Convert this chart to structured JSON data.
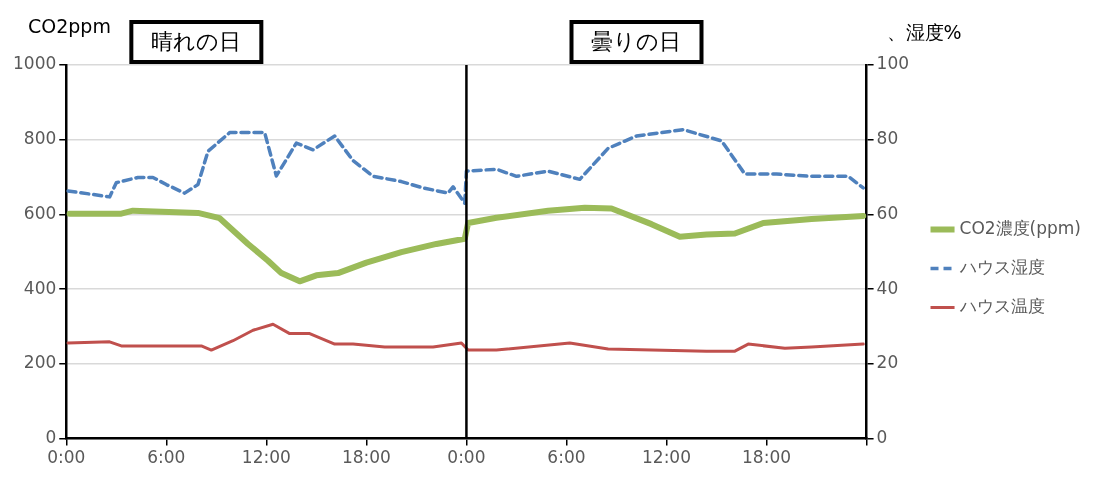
{
  "chart_data": {
    "type": "line",
    "ylabel": "CO2ppm",
    "y2label": "、湿度%",
    "annotations": [
      "晴れの日",
      "曇りの日"
    ],
    "xlim": [
      "2000-01-01T00:00",
      "2000-01-03T00:00"
    ],
    "xticks": [
      {
        "value": "2000-01-01T00:00",
        "label": "0:00"
      },
      {
        "value": "2000-01-01T06:00",
        "label": "6:00"
      },
      {
        "value": "2000-01-01T12:00",
        "label": "12:00"
      },
      {
        "value": "2000-01-01T18:00",
        "label": "18:00"
      },
      {
        "value": "2000-01-02T00:00",
        "label": "0:00"
      },
      {
        "value": "2000-01-02T06:00",
        "label": "6:00"
      },
      {
        "value": "2000-01-02T12:00",
        "label": "12:00"
      },
      {
        "value": "2000-01-02T18:00",
        "label": "18:00"
      },
      {
        "value": "2000-01-03T00:00",
        "label": null
      }
    ],
    "ylim": [
      0,
      1000
    ],
    "yticks": [
      0,
      200,
      400,
      600,
      800,
      1000
    ],
    "y2lim": [
      0,
      100
    ],
    "y2ticks": [
      0,
      20,
      40,
      60,
      80,
      100
    ],
    "grid": "y",
    "legend": "right",
    "marker": "none",
    "ref_lines": [
      {
        "axis": "x",
        "value": "2000-01-02T00:00",
        "color": "#000000"
      }
    ],
    "series": [
      {
        "name": "CO2濃度(ppm)",
        "color": "#9bbb59",
        "line_style": "solid",
        "x": [
          "2000-01-01T00:12",
          "2000-01-01T03:18",
          "2000-01-01T04:00",
          "2000-01-01T07:54",
          "2000-01-01T09:12",
          "2000-01-01T10:54",
          "2000-01-01T12:06",
          "2000-01-01T12:54",
          "2000-01-01T14:00",
          "2000-01-01T15:00",
          "2000-01-01T16:18",
          "2000-01-01T18:00",
          "2000-01-01T20:06",
          "2000-01-01T22:12",
          "2000-01-01T23:54",
          "2000-01-02T00:06",
          "2000-01-02T01:48",
          "2000-01-02T04:54",
          "2000-01-02T07:06",
          "2000-01-02T08:42",
          "2000-01-02T11:06",
          "2000-01-02T12:48",
          "2000-01-02T14:24",
          "2000-01-02T16:06",
          "2000-01-02T17:48",
          "2000-01-02T20:42",
          "2000-01-02T23:48"
        ],
        "values": [
          602,
          602,
          610,
          604,
          590,
          521,
          476,
          443,
          421,
          437,
          443,
          471,
          499,
          521,
          535,
          577,
          591,
          610,
          618,
          616,
          574,
          540,
          546,
          549,
          577,
          588,
          596
        ]
      },
      {
        "name": "ハウス湿度",
        "color": "#4f81bd",
        "axis": "y2",
        "line_style": "dashed",
        "x": [
          "2000-01-01T00:06",
          "2000-01-01T02:36",
          "2000-01-01T03:00",
          "2000-01-01T04:18",
          "2000-01-01T05:12",
          "2000-01-01T06:00",
          "2000-01-01T07:06",
          "2000-01-01T07:54",
          "2000-01-01T08:30",
          "2000-01-01T09:48",
          "2000-01-01T11:54",
          "2000-01-01T12:36",
          "2000-01-01T13:48",
          "2000-01-01T14:48",
          "2000-01-01T16:06",
          "2000-01-01T17:12",
          "2000-01-01T18:24",
          "2000-01-01T20:06",
          "2000-01-01T21:24",
          "2000-01-01T22:54",
          "2000-01-01T23:12",
          "2000-01-01T23:54",
          "2000-01-02T00:00",
          "2000-01-02T01:48",
          "2000-01-02T03:00",
          "2000-01-02T04:54",
          "2000-01-02T06:48",
          "2000-01-02T08:30",
          "2000-01-02T10:12",
          "2000-01-02T13:00",
          "2000-01-02T15:18",
          "2000-01-02T16:42",
          "2000-01-02T18:36",
          "2000-01-02T20:42",
          "2000-01-02T22:54",
          "2000-01-02T23:48"
        ],
        "values": [
          66.3,
          64.7,
          68.5,
          69.9,
          69.9,
          68,
          65.7,
          68,
          76.9,
          81.9,
          81.9,
          70.3,
          79.1,
          77.3,
          81,
          74.4,
          70.2,
          68.8,
          67.1,
          65.7,
          67.4,
          63,
          71.6,
          72.1,
          70.2,
          71.6,
          69.4,
          77.7,
          81,
          82.7,
          79.7,
          70.8,
          70.8,
          70.2,
          70.2,
          67.1
        ]
      },
      {
        "name": "ハウス温度",
        "color": "#c0504d",
        "axis": "y2",
        "line_style": "solid",
        "x": [
          "2000-01-01T00:06",
          "2000-01-01T02:36",
          "2000-01-01T03:18",
          "2000-01-01T08:06",
          "2000-01-01T08:42",
          "2000-01-01T10:00",
          "2000-01-01T11:12",
          "2000-01-01T12:24",
          "2000-01-01T13:24",
          "2000-01-01T14:36",
          "2000-01-01T16:06",
          "2000-01-01T17:12",
          "2000-01-01T19:06",
          "2000-01-01T22:00",
          "2000-01-01T23:42",
          "2000-01-02T00:06",
          "2000-01-02T01:48",
          "2000-01-02T06:12",
          "2000-01-02T08:30",
          "2000-01-02T14:24",
          "2000-01-02T16:06",
          "2000-01-02T16:54",
          "2000-01-02T19:06",
          "2000-01-02T20:42",
          "2000-01-02T23:48"
        ],
        "values": [
          25.6,
          25.9,
          24.8,
          24.8,
          23.7,
          26.2,
          29.0,
          30.6,
          28.1,
          28.1,
          25.3,
          25.3,
          24.5,
          24.5,
          25.6,
          23.7,
          23.7,
          25.6,
          24.0,
          23.4,
          23.4,
          25.3,
          24.2,
          24.5,
          25.3
        ]
      }
    ]
  }
}
